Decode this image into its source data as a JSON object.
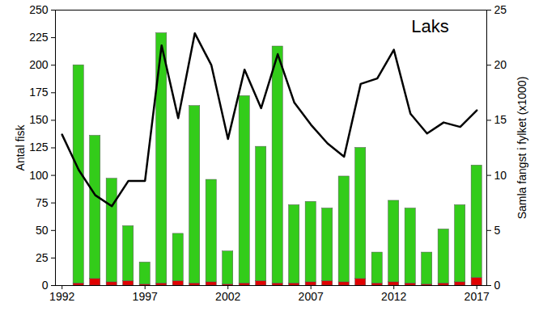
{
  "chart_data": {
    "type": "bar",
    "title": "Laks",
    "y_label": "Antal fisk",
    "y2_label": "Samla fangst i fylket (x1000)",
    "stacked": true,
    "x": [
      1992,
      1993,
      1994,
      1995,
      1996,
      1997,
      1998,
      1999,
      2000,
      2001,
      2002,
      2003,
      2004,
      2005,
      2006,
      2007,
      2008,
      2009,
      2010,
      2011,
      2012,
      2013,
      2014,
      2015,
      2016,
      2017
    ],
    "xlim": [
      1991.6,
      2017.6
    ],
    "xticks": [
      1992,
      1997,
      2002,
      2007,
      2012,
      2017
    ],
    "ylim": [
      0,
      250
    ],
    "yticks": [
      0,
      25,
      50,
      75,
      100,
      125,
      150,
      175,
      200,
      225,
      250
    ],
    "y2lim": [
      0,
      25
    ],
    "y2ticks": [
      0,
      5,
      10,
      15,
      20,
      25
    ],
    "series": [
      {
        "type": "bar",
        "color": "#e00000",
        "values": [
          null,
          2,
          6,
          3,
          4,
          1,
          2,
          4,
          2,
          3,
          1,
          2,
          4,
          2,
          2,
          3,
          4,
          3,
          6,
          2,
          3,
          2,
          1,
          2,
          3,
          7
        ]
      },
      {
        "type": "bar",
        "color": "#33cc1a",
        "values": [
          null,
          198,
          130,
          94,
          50,
          20,
          227,
          43,
          161,
          93,
          30,
          170,
          122,
          215,
          71,
          73,
          66,
          96,
          119,
          28,
          74,
          68,
          29,
          49,
          70,
          102
        ]
      },
      {
        "type": "line",
        "axis": "y2",
        "color": "#000000",
        "values": [
          13.7,
          10.5,
          8.2,
          7.2,
          9.5,
          9.5,
          21.8,
          15.2,
          22.9,
          20.0,
          13.3,
          19.6,
          16.1,
          21.0,
          16.6,
          14.6,
          12.9,
          11.7,
          18.3,
          18.8,
          21.4,
          15.6,
          13.8,
          14.8,
          14.4,
          15.9
        ]
      }
    ]
  }
}
